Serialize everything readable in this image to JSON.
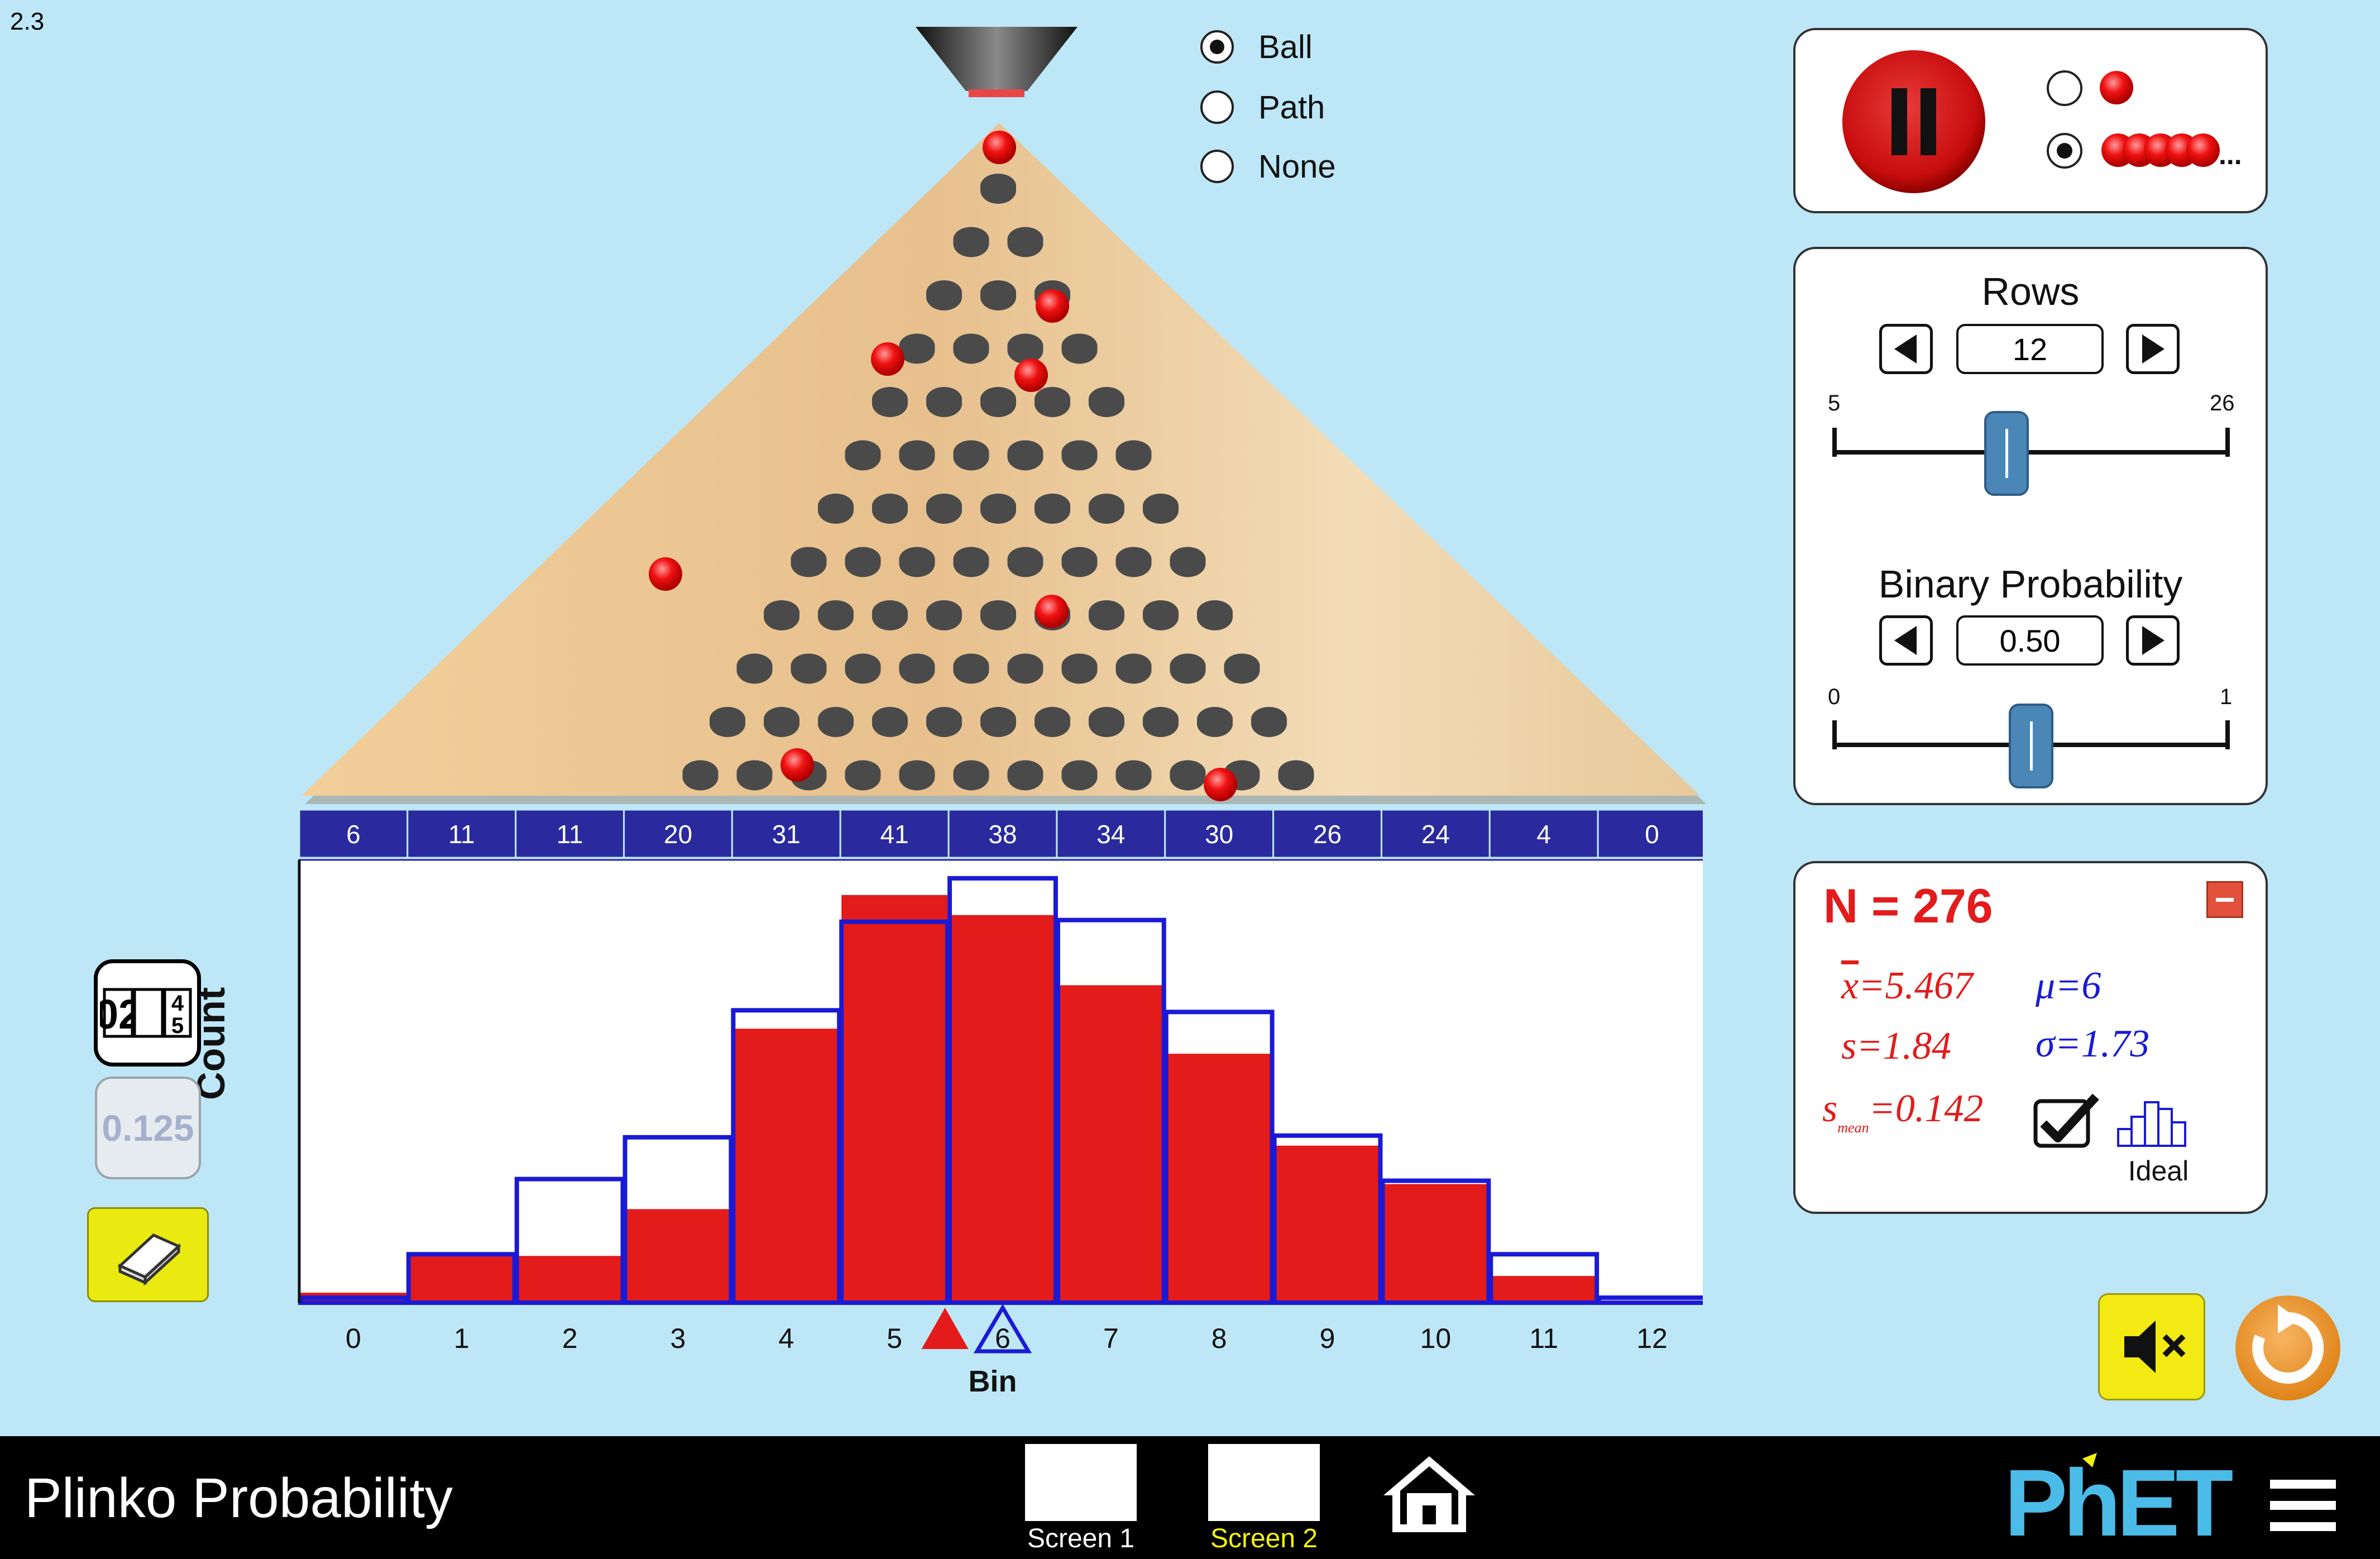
{
  "version": "2.3",
  "sim_title": "Plinko Probability",
  "radio_group": {
    "options": [
      "Ball",
      "Path",
      "None"
    ],
    "selected": "Ball"
  },
  "play_panel": {
    "play_state": "pause-icon",
    "modes": [
      "single-ball-icon",
      "continuous-balls-icon"
    ],
    "selected_mode": "continuous-balls-icon",
    "continuous_suffix": "..."
  },
  "rows_panel": {
    "rows_title": "Rows",
    "rows_value": "12",
    "rows_min": "5",
    "rows_max": "26",
    "prob_title": "Binary Probability",
    "prob_value": "0.50",
    "prob_min": "0",
    "prob_max": "1"
  },
  "stats": {
    "n_label": "N = 276",
    "xbar": "=5.467",
    "s": "=1.84",
    "s_mean": "=0.142",
    "mu": "=6",
    "sigma": "=1.73",
    "ideal_label": "Ideal",
    "ideal_checked": true
  },
  "left_controls": {
    "counter_digits": "02",
    "fraction_value": "0.125"
  },
  "chart_data": {
    "type": "bar",
    "categories": [
      "0",
      "1",
      "2",
      "3",
      "4",
      "5",
      "6",
      "7",
      "8",
      "9",
      "10",
      "11",
      "12"
    ],
    "counts": [
      6,
      11,
      11,
      20,
      31,
      41,
      38,
      34,
      30,
      26,
      24,
      4,
      0
    ],
    "series": [
      {
        "name": "",
        "values": [
          0.6,
          3.0,
          2.8,
          5.6,
          16.4,
          24.4,
          23.2,
          19.0,
          14.9,
          9.4,
          7.1,
          1.6,
          0
        ]
      },
      {
        "name": "Ideal",
        "values": [
          0.3,
          2.9,
          7.4,
          9.9,
          17.5,
          22.8,
          25.4,
          22.9,
          17.4,
          10.0,
          7.3,
          2.9,
          0.3
        ]
      }
    ],
    "xlabel": "Bin",
    "ylabel": "Count",
    "sample_mean_marker": 5.467,
    "ideal_mean_marker": 6,
    "colors": {
      "sample": "#e31b1b",
      "ideal": "#1a1ad6",
      "count_bar": "#2a2a9e"
    }
  },
  "navbar": {
    "screens": [
      {
        "label": "Screen 1",
        "color": "#ffffff"
      },
      {
        "label": "Screen 2",
        "color": "#f2f210"
      }
    ],
    "logo": "PhET"
  }
}
